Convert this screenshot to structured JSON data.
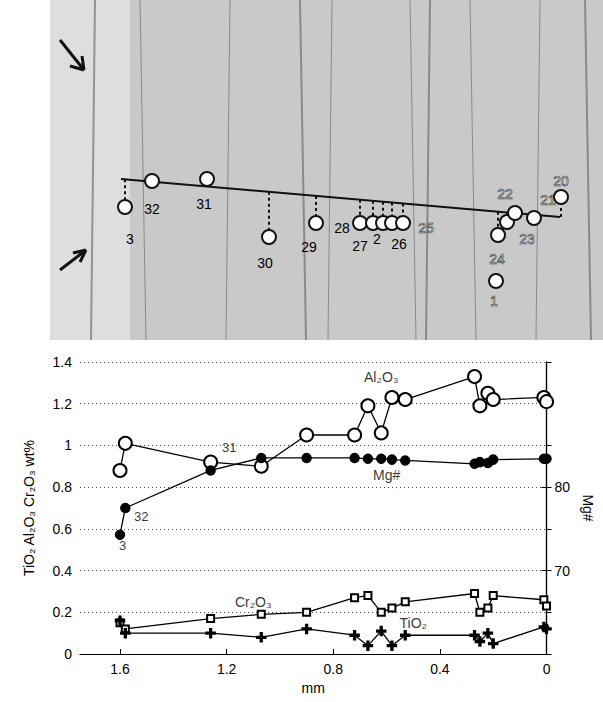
{
  "photo": {
    "spots": [
      "3",
      "32",
      "31",
      "30",
      "29",
      "28",
      "27",
      "2",
      "26",
      "25",
      "24",
      "23",
      "22",
      "21",
      "20",
      "1"
    ]
  },
  "chart_data": {
    "type": "line",
    "x_label": "mm",
    "y_label": "TiO₂ Al₂O₃ Cr₂O₃ wt%",
    "y2_label": "Mg#",
    "x": [
      1.6,
      1.58,
      1.26,
      1.07,
      0.9,
      0.72,
      0.67,
      0.62,
      0.58,
      0.53,
      0.27,
      0.25,
      0.22,
      0.2,
      0.01,
      0.0
    ],
    "xlim": [
      0,
      1.75
    ],
    "xticks": [
      0,
      0.4,
      0.8,
      1.2,
      1.6
    ],
    "ylim": [
      0,
      1.4
    ],
    "yticks": [
      0,
      0.2,
      0.4,
      0.6,
      0.8,
      1,
      1.2,
      1.4
    ],
    "y2lim": [
      60,
      95
    ],
    "y2ticks": [
      70,
      80
    ],
    "grid": true,
    "series": [
      {
        "name": "Al₂O₃",
        "color": "#000000",
        "marker": "open_circle",
        "name_at": [
          0.62,
          1.33
        ],
        "values": [
          0.88,
          1.01,
          0.92,
          0.9,
          1.05,
          1.05,
          1.19,
          1.06,
          1.23,
          1.22,
          1.33,
          1.19,
          1.25,
          1.22,
          1.23,
          1.21
        ]
      },
      {
        "name": "Mg#",
        "color": "#000000",
        "marker": "filled_circle",
        "axis": "y2",
        "name_at": [
          0.6,
          81.5
        ],
        "values": [
          74.3,
          77.5,
          82,
          83.5,
          83.5,
          83.5,
          83.4,
          83.4,
          83.3,
          83.2,
          82.8,
          83,
          82.9,
          83.3,
          83.4,
          83.4
        ]
      },
      {
        "name": "Cr₂O₃",
        "color": "#000000",
        "marker": "open_square",
        "name_at": [
          1.1,
          0.25
        ],
        "values": [
          0.15,
          0.12,
          0.17,
          0.19,
          0.2,
          0.27,
          0.28,
          0.2,
          0.22,
          0.25,
          0.29,
          0.2,
          0.22,
          0.28,
          0.26,
          0.23
        ]
      },
      {
        "name": "TiO₂",
        "color": "#000000",
        "marker": "plus",
        "name_at": [
          0.5,
          0.15
        ],
        "values": [
          0.16,
          0.1,
          0.1,
          0.08,
          0.12,
          0.09,
          0.04,
          0.11,
          0.04,
          0.09,
          0.09,
          0.06,
          0.1,
          0.05,
          0.13,
          0.12
        ]
      }
    ],
    "annotations": [
      {
        "text": "31",
        "x": 1.19,
        "y": 0.99
      },
      {
        "text": "32",
        "x": 1.52,
        "y": 0.66
      },
      {
        "text": "3",
        "x": 1.59,
        "y": 0.52
      }
    ]
  }
}
